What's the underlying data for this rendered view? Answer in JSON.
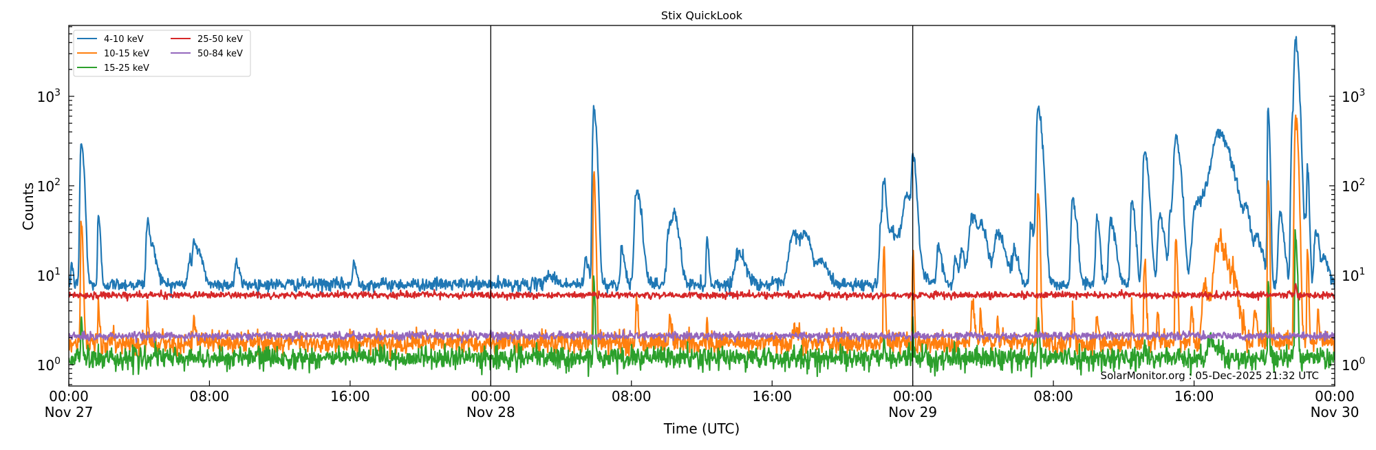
{
  "chart_data": {
    "type": "line",
    "title": "Stix QuickLook",
    "xlabel": "Time (UTC)",
    "ylabel": "Counts",
    "yscale": "log",
    "ylim": [
      0.58,
      6200
    ],
    "xlim": [
      "2025-11-27 00:00",
      "2025-11-30 00:00"
    ],
    "grid": false,
    "legend_position": "upper left",
    "legend_columns": 2,
    "x_ticks": [
      {
        "pos_days": 0.0,
        "label": "00:00",
        "sublabel": "Nov 27"
      },
      {
        "pos_days": 0.3333,
        "label": "08:00",
        "sublabel": ""
      },
      {
        "pos_days": 0.6667,
        "label": "16:00",
        "sublabel": ""
      },
      {
        "pos_days": 1.0,
        "label": "00:00",
        "sublabel": "Nov 28"
      },
      {
        "pos_days": 1.3333,
        "label": "08:00",
        "sublabel": ""
      },
      {
        "pos_days": 1.6667,
        "label": "16:00",
        "sublabel": ""
      },
      {
        "pos_days": 2.0,
        "label": "00:00",
        "sublabel": "Nov 29"
      },
      {
        "pos_days": 2.3333,
        "label": "08:00",
        "sublabel": ""
      },
      {
        "pos_days": 2.6667,
        "label": "16:00",
        "sublabel": ""
      },
      {
        "pos_days": 3.0,
        "label": "00:00",
        "sublabel": "Nov 30"
      }
    ],
    "y_ticks": [
      {
        "value": 1,
        "base": "10",
        "exp": "0"
      },
      {
        "value": 10,
        "base": "10",
        "exp": "1"
      },
      {
        "value": 100,
        "base": "10",
        "exp": "2"
      },
      {
        "value": 1000,
        "base": "10",
        "exp": "3"
      }
    ],
    "day_separators_days": [
      1.0,
      2.0
    ],
    "series": [
      {
        "name": "4-10 keV",
        "color": "#1f77b4",
        "baseline": 7.9,
        "noise": 0.035,
        "peaks": [
          {
            "t": 0.006,
            "v": 14,
            "w": 0.002
          },
          {
            "t": 0.0293,
            "v": 300,
            "w": 0.0035
          },
          {
            "t": 0.07,
            "v": 45,
            "w": 0.0025
          },
          {
            "t": 0.186,
            "v": 40,
            "w": 0.004
          },
          {
            "t": 0.2,
            "v": 17,
            "w": 0.006
          },
          {
            "t": 0.285,
            "v": 15,
            "w": 0.004
          },
          {
            "t": 0.297,
            "v": 23,
            "w": 0.005
          },
          {
            "t": 0.31,
            "v": 14,
            "w": 0.006
          },
          {
            "t": 0.396,
            "v": 14,
            "w": 0.004
          },
          {
            "t": 0.675,
            "v": 13,
            "w": 0.004
          },
          {
            "t": 1.135,
            "v": 10,
            "w": 0.01
          },
          {
            "t": 1.225,
            "v": 15,
            "w": 0.004
          },
          {
            "t": 1.244,
            "v": 740,
            "w": 0.0035
          },
          {
            "t": 1.31,
            "v": 20,
            "w": 0.004
          },
          {
            "t": 1.345,
            "v": 90,
            "w": 0.006
          },
          {
            "t": 1.424,
            "v": 38,
            "w": 0.008
          },
          {
            "t": 1.436,
            "v": 30,
            "w": 0.006
          },
          {
            "t": 1.512,
            "v": 24,
            "w": 0.0025
          },
          {
            "t": 1.585,
            "v": 18,
            "w": 0.01
          },
          {
            "t": 1.718,
            "v": 29,
            "w": 0.015
          },
          {
            "t": 1.745,
            "v": 20,
            "w": 0.008
          },
          {
            "t": 1.78,
            "v": 14,
            "w": 0.01
          },
          {
            "t": 1.925,
            "v": 40,
            "w": 0.005
          },
          {
            "t": 1.931,
            "v": 98,
            "w": 0.003
          },
          {
            "t": 1.95,
            "v": 30,
            "w": 0.02
          },
          {
            "t": 1.985,
            "v": 65,
            "w": 0.01
          },
          {
            "t": 2.0,
            "v": 176,
            "w": 0.004
          },
          {
            "t": 2.06,
            "v": 20,
            "w": 0.005
          },
          {
            "t": 2.1,
            "v": 15,
            "w": 0.004
          },
          {
            "t": 2.115,
            "v": 20,
            "w": 0.004
          },
          {
            "t": 2.14,
            "v": 45,
            "w": 0.01
          },
          {
            "t": 2.165,
            "v": 25,
            "w": 0.008
          },
          {
            "t": 2.2,
            "v": 30,
            "w": 0.01
          },
          {
            "t": 2.24,
            "v": 18,
            "w": 0.006
          },
          {
            "t": 2.28,
            "v": 40,
            "w": 0.004
          },
          {
            "t": 2.297,
            "v": 730,
            "w": 0.005
          },
          {
            "t": 2.379,
            "v": 69,
            "w": 0.005
          },
          {
            "t": 2.436,
            "v": 43,
            "w": 0.004
          },
          {
            "t": 2.469,
            "v": 40,
            "w": 0.006
          },
          {
            "t": 2.519,
            "v": 74,
            "w": 0.004
          },
          {
            "t": 2.549,
            "v": 242,
            "w": 0.005
          },
          {
            "t": 2.585,
            "v": 45,
            "w": 0.006
          },
          {
            "t": 2.61,
            "v": 50,
            "w": 0.004
          },
          {
            "t": 2.623,
            "v": 345,
            "w": 0.006
          },
          {
            "t": 2.67,
            "v": 60,
            "w": 0.01
          },
          {
            "t": 2.7,
            "v": 80,
            "w": 0.02
          },
          {
            "t": 2.723,
            "v": 330,
            "w": 0.018
          },
          {
            "t": 2.79,
            "v": 40,
            "w": 0.006
          },
          {
            "t": 2.815,
            "v": 25,
            "w": 0.008
          },
          {
            "t": 2.842,
            "v": 740,
            "w": 0.002
          },
          {
            "t": 2.87,
            "v": 50,
            "w": 0.005
          },
          {
            "t": 2.9,
            "v": 600,
            "w": 0.004
          },
          {
            "t": 2.907,
            "v": 4000,
            "w": 0.004
          },
          {
            "t": 2.93,
            "v": 40,
            "w": 0.004
          },
          {
            "t": 2.935,
            "v": 145,
            "w": 0.002
          },
          {
            "t": 2.955,
            "v": 30,
            "w": 0.005
          },
          {
            "t": 2.975,
            "v": 15,
            "w": 0.006
          }
        ]
      },
      {
        "name": "10-15 keV",
        "color": "#ff7f0e",
        "baseline": 1.76,
        "noise": 0.06,
        "peaks": [
          {
            "t": 0.0293,
            "v": 42,
            "w": 0.002
          },
          {
            "t": 0.07,
            "v": 5,
            "w": 0.0015
          },
          {
            "t": 0.186,
            "v": 4.5,
            "w": 0.0015
          },
          {
            "t": 0.297,
            "v": 2.8,
            "w": 0.003
          },
          {
            "t": 1.244,
            "v": 140,
            "w": 0.002
          },
          {
            "t": 1.345,
            "v": 5.5,
            "w": 0.002
          },
          {
            "t": 1.424,
            "v": 3,
            "w": 0.003
          },
          {
            "t": 1.512,
            "v": 3,
            "w": 0.0015
          },
          {
            "t": 1.718,
            "v": 2.6,
            "w": 0.006
          },
          {
            "t": 1.931,
            "v": 22,
            "w": 0.0015
          },
          {
            "t": 2.0,
            "v": 22,
            "w": 0.0015
          },
          {
            "t": 2.14,
            "v": 5,
            "w": 0.003
          },
          {
            "t": 2.16,
            "v": 4,
            "w": 0.0015
          },
          {
            "t": 2.2,
            "v": 4,
            "w": 0.0015
          },
          {
            "t": 2.297,
            "v": 88,
            "w": 0.002
          },
          {
            "t": 2.379,
            "v": 4,
            "w": 0.002
          },
          {
            "t": 2.436,
            "v": 3.5,
            "w": 0.002
          },
          {
            "t": 2.519,
            "v": 5,
            "w": 0.0015
          },
          {
            "t": 2.549,
            "v": 15,
            "w": 0.002
          },
          {
            "t": 2.58,
            "v": 4,
            "w": 0.002
          },
          {
            "t": 2.623,
            "v": 25,
            "w": 0.002
          },
          {
            "t": 2.66,
            "v": 5,
            "w": 0.002
          },
          {
            "t": 2.69,
            "v": 8,
            "w": 0.006
          },
          {
            "t": 2.723,
            "v": 23,
            "w": 0.014
          },
          {
            "t": 2.76,
            "v": 6,
            "w": 0.006
          },
          {
            "t": 2.81,
            "v": 4,
            "w": 0.003
          },
          {
            "t": 2.842,
            "v": 130,
            "w": 0.0015
          },
          {
            "t": 2.907,
            "v": 560,
            "w": 0.003
          },
          {
            "t": 2.935,
            "v": 20,
            "w": 0.0015
          },
          {
            "t": 2.96,
            "v": 4,
            "w": 0.002
          }
        ]
      },
      {
        "name": "15-25 keV",
        "color": "#2ca02c",
        "baseline": 1.19,
        "noise": 0.06,
        "peaks": [
          {
            "t": 0.0293,
            "v": 3.5,
            "w": 0.0015
          },
          {
            "t": 1.244,
            "v": 8,
            "w": 0.0015
          },
          {
            "t": 1.931,
            "v": 2.2,
            "w": 0.001
          },
          {
            "t": 2.0,
            "v": 2.5,
            "w": 0.001
          },
          {
            "t": 2.297,
            "v": 4,
            "w": 0.0015
          },
          {
            "t": 2.549,
            "v": 1.8,
            "w": 0.0015
          },
          {
            "t": 2.705,
            "v": 1.8,
            "w": 0.01
          },
          {
            "t": 2.842,
            "v": 9,
            "w": 0.0012
          },
          {
            "t": 2.907,
            "v": 29,
            "w": 0.002
          }
        ]
      },
      {
        "name": "25-50 keV",
        "color": "#d62728",
        "baseline": 6.0,
        "noise": 0.018,
        "peaks": [
          {
            "t": 2.907,
            "v": 8.4,
            "w": 0.0012
          }
        ]
      },
      {
        "name": "50-84 keV",
        "color": "#9467bd",
        "baseline": 2.1,
        "noise": 0.022,
        "peaks": []
      }
    ],
    "annotation": "SolarMonitor.org : 05-Dec-2025 21:32 UTC"
  }
}
